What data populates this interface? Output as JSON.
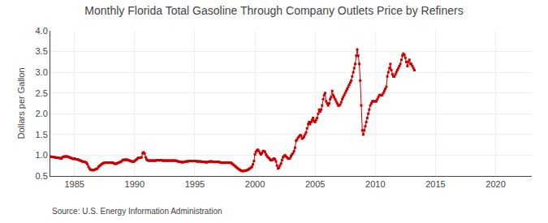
{
  "chart_data": {
    "type": "line",
    "title": "Monthly Florida Total Gasoline Through Company Outlets Price by Refiners",
    "y_label": "Dollars per Gallon",
    "annotations": [
      "Source: U.S. Energy Information Administration"
    ],
    "color": "#cc0000",
    "marker": "square",
    "line_style": "solid",
    "grid": true,
    "xlim": [
      1983,
      2023
    ],
    "ylim": [
      0.5,
      4.0
    ],
    "xticks": [
      1985,
      1990,
      1995,
      2000,
      2005,
      2010,
      2015,
      2020
    ],
    "yticks": [
      0.5,
      {
        "value": 1.0,
        "label": "1.0"
      },
      1.5,
      {
        "value": 2.0,
        "label": "2.0"
      },
      2.5,
      {
        "value": 3.0,
        "label": "3.0"
      },
      3.5,
      {
        "value": 4.0,
        "label": "4.0"
      }
    ],
    "x": [
      1983.0,
      1983.08,
      1983.17,
      1983.25,
      1983.33,
      1983.42,
      1983.5,
      1983.58,
      1983.67,
      1983.75,
      1983.83,
      1983.92,
      1984.0,
      1984.08,
      1984.17,
      1984.25,
      1984.33,
      1984.42,
      1984.5,
      1984.58,
      1984.67,
      1984.75,
      1984.83,
      1984.92,
      1985.0,
      1985.08,
      1985.17,
      1985.25,
      1985.33,
      1985.42,
      1985.5,
      1985.58,
      1985.67,
      1985.75,
      1985.83,
      1985.92,
      1986.0,
      1986.08,
      1986.17,
      1986.25,
      1986.33,
      1986.42,
      1986.5,
      1986.58,
      1986.67,
      1986.75,
      1986.83,
      1986.92,
      1987.0,
      1987.08,
      1987.17,
      1987.25,
      1987.33,
      1987.42,
      1987.5,
      1987.58,
      1987.67,
      1987.75,
      1987.83,
      1987.92,
      1988.0,
      1988.08,
      1988.17,
      1988.25,
      1988.33,
      1988.42,
      1988.5,
      1988.58,
      1988.67,
      1988.75,
      1988.83,
      1988.92,
      1989.0,
      1989.08,
      1989.17,
      1989.25,
      1989.33,
      1989.42,
      1989.5,
      1989.58,
      1989.67,
      1989.75,
      1989.83,
      1989.92,
      1990.0,
      1990.08,
      1990.17,
      1990.25,
      1990.33,
      1990.42,
      1990.5,
      1990.58,
      1990.67,
      1990.75,
      1990.83,
      1990.92,
      1991.0,
      1991.08,
      1991.17,
      1991.25,
      1991.33,
      1991.42,
      1991.5,
      1991.58,
      1991.67,
      1991.75,
      1991.83,
      1991.92,
      1992.0,
      1992.08,
      1992.17,
      1992.25,
      1992.33,
      1992.42,
      1992.5,
      1992.58,
      1992.67,
      1992.75,
      1992.83,
      1992.92,
      1993.0,
      1993.08,
      1993.17,
      1993.25,
      1993.33,
      1993.42,
      1993.5,
      1993.58,
      1993.67,
      1993.75,
      1993.83,
      1993.92,
      1994.0,
      1994.08,
      1994.17,
      1994.25,
      1994.33,
      1994.42,
      1994.5,
      1994.58,
      1994.67,
      1994.75,
      1994.83,
      1994.92,
      1995.0,
      1995.08,
      1995.17,
      1995.25,
      1995.33,
      1995.42,
      1995.5,
      1995.58,
      1995.67,
      1995.75,
      1995.83,
      1995.92,
      1996.0,
      1996.08,
      1996.17,
      1996.25,
      1996.33,
      1996.42,
      1996.5,
      1996.58,
      1996.67,
      1996.75,
      1996.83,
      1996.92,
      1997.0,
      1997.08,
      1997.17,
      1997.25,
      1997.33,
      1997.42,
      1997.5,
      1997.58,
      1997.67,
      1997.75,
      1997.83,
      1997.92,
      1998.0,
      1998.08,
      1998.17,
      1998.25,
      1998.33,
      1998.42,
      1998.5,
      1998.58,
      1998.67,
      1998.75,
      1998.83,
      1998.92,
      1999.0,
      1999.08,
      1999.17,
      1999.25,
      1999.33,
      1999.42,
      1999.5,
      1999.58,
      1999.67,
      1999.75,
      1999.83,
      1999.92,
      2000.0,
      2000.08,
      2000.17,
      2000.25,
      2000.33,
      2000.42,
      2000.5,
      2000.58,
      2000.67,
      2000.75,
      2000.83,
      2000.92,
      2001.0,
      2001.08,
      2001.17,
      2001.25,
      2001.33,
      2001.42,
      2001.5,
      2001.58,
      2001.67,
      2001.75,
      2001.83,
      2001.92,
      2002.0,
      2002.08,
      2002.17,
      2002.25,
      2002.33,
      2002.42,
      2002.5,
      2002.58,
      2002.67,
      2002.75,
      2002.83,
      2002.92,
      2003.0,
      2003.08,
      2003.17,
      2003.25,
      2003.33,
      2003.42,
      2003.5,
      2003.58,
      2003.67,
      2003.75,
      2003.83,
      2003.92,
      2004.0,
      2004.08,
      2004.17,
      2004.25,
      2004.33,
      2004.42,
      2004.5,
      2004.58,
      2004.67,
      2004.75,
      2004.83,
      2004.92,
      2005.0,
      2005.08,
      2005.17,
      2005.25,
      2005.33,
      2005.42,
      2005.5,
      2005.58,
      2005.67,
      2005.75,
      2005.83,
      2005.92,
      2006.0,
      2006.08,
      2006.17,
      2006.25,
      2006.33,
      2006.42,
      2006.5,
      2006.58,
      2006.67,
      2006.75,
      2006.83,
      2006.92,
      2007.0,
      2007.08,
      2007.17,
      2007.25,
      2007.33,
      2007.42,
      2007.5,
      2007.58,
      2007.67,
      2007.75,
      2007.83,
      2007.92,
      2008.0,
      2008.08,
      2008.17,
      2008.25,
      2008.33,
      2008.42,
      2008.5,
      2008.58,
      2008.67,
      2008.75,
      2008.83,
      2008.92,
      2009.0,
      2009.08,
      2009.17,
      2009.25,
      2009.33,
      2009.42,
      2009.5,
      2009.58,
      2009.67,
      2009.75,
      2009.83,
      2009.92,
      2010.0,
      2010.08,
      2010.17,
      2010.25,
      2010.33,
      2010.42,
      2010.5,
      2010.58,
      2010.67,
      2010.75,
      2010.83,
      2010.92,
      2011.0,
      2011.08,
      2011.17,
      2011.25,
      2011.33,
      2011.42,
      2011.5,
      2011.58,
      2011.67,
      2011.75,
      2011.83,
      2011.92,
      2012.0,
      2012.08,
      2012.17,
      2012.25,
      2012.33,
      2012.42,
      2012.5,
      2012.58,
      2012.67,
      2012.75,
      2012.83,
      2012.92,
      2013.0,
      2013.08,
      2013.17,
      2013.25
    ],
    "values": [
      0.97,
      0.96,
      0.96,
      0.96,
      0.95,
      0.95,
      0.94,
      0.94,
      0.94,
      0.93,
      0.93,
      0.92,
      0.95,
      0.96,
      0.97,
      0.97,
      0.97,
      0.97,
      0.96,
      0.95,
      0.94,
      0.93,
      0.92,
      0.91,
      0.92,
      0.91,
      0.9,
      0.9,
      0.89,
      0.88,
      0.87,
      0.86,
      0.85,
      0.84,
      0.84,
      0.83,
      0.82,
      0.78,
      0.72,
      0.68,
      0.65,
      0.65,
      0.64,
      0.64,
      0.65,
      0.66,
      0.67,
      0.68,
      0.72,
      0.74,
      0.76,
      0.78,
      0.8,
      0.81,
      0.82,
      0.82,
      0.82,
      0.82,
      0.82,
      0.82,
      0.82,
      0.82,
      0.82,
      0.81,
      0.8,
      0.79,
      0.8,
      0.81,
      0.82,
      0.83,
      0.84,
      0.85,
      0.88,
      0.89,
      0.89,
      0.89,
      0.89,
      0.89,
      0.88,
      0.87,
      0.86,
      0.85,
      0.85,
      0.84,
      0.86,
      0.88,
      0.9,
      0.92,
      0.94,
      0.94,
      0.94,
      0.95,
      1.05,
      1.07,
      1.04,
      0.95,
      0.9,
      0.88,
      0.87,
      0.87,
      0.87,
      0.87,
      0.87,
      0.87,
      0.87,
      0.87,
      0.88,
      0.88,
      0.88,
      0.88,
      0.88,
      0.88,
      0.87,
      0.87,
      0.87,
      0.87,
      0.87,
      0.87,
      0.87,
      0.87,
      0.87,
      0.87,
      0.87,
      0.87,
      0.87,
      0.87,
      0.86,
      0.85,
      0.85,
      0.84,
      0.84,
      0.83,
      0.83,
      0.84,
      0.84,
      0.85,
      0.85,
      0.85,
      0.86,
      0.86,
      0.86,
      0.86,
      0.86,
      0.86,
      0.86,
      0.86,
      0.85,
      0.85,
      0.85,
      0.85,
      0.85,
      0.84,
      0.84,
      0.84,
      0.84,
      0.83,
      0.83,
      0.84,
      0.84,
      0.85,
      0.85,
      0.85,
      0.84,
      0.84,
      0.84,
      0.84,
      0.84,
      0.84,
      0.84,
      0.83,
      0.82,
      0.82,
      0.82,
      0.82,
      0.82,
      0.82,
      0.82,
      0.82,
      0.82,
      0.82,
      0.82,
      0.8,
      0.78,
      0.76,
      0.74,
      0.72,
      0.7,
      0.68,
      0.66,
      0.65,
      0.63,
      0.62,
      0.62,
      0.62,
      0.63,
      0.63,
      0.64,
      0.65,
      0.67,
      0.68,
      0.7,
      0.72,
      0.78,
      0.86,
      1.02,
      1.08,
      1.12,
      1.13,
      1.1,
      1.05,
      1.02,
      1.05,
      1.1,
      1.1,
      1.08,
      1.02,
      0.98,
      0.95,
      0.93,
      0.9,
      0.88,
      0.88,
      0.9,
      0.92,
      0.9,
      0.85,
      0.75,
      0.68,
      0.7,
      0.75,
      0.8,
      0.88,
      0.95,
      0.98,
      1.0,
      0.97,
      0.95,
      0.92,
      0.92,
      0.93,
      0.98,
      1.02,
      1.05,
      1.1,
      1.18,
      1.35,
      1.38,
      1.42,
      1.45,
      1.48,
      1.48,
      1.4,
      1.42,
      1.45,
      1.5,
      1.55,
      1.65,
      1.75,
      1.8,
      1.75,
      1.8,
      1.85,
      1.9,
      1.82,
      1.8,
      1.85,
      1.9,
      2.0,
      2.1,
      2.05,
      2.1,
      2.2,
      2.35,
      2.45,
      2.5,
      2.3,
      2.25,
      2.2,
      2.25,
      2.35,
      2.4,
      2.55,
      2.45,
      2.4,
      2.35,
      2.3,
      2.25,
      2.2,
      2.2,
      2.22,
      2.28,
      2.35,
      2.4,
      2.45,
      2.5,
      2.55,
      2.6,
      2.65,
      2.7,
      2.75,
      2.8,
      2.9,
      3.0,
      3.1,
      3.2,
      3.4,
      3.55,
      3.4,
      3.2,
      2.8,
      2.2,
      1.6,
      1.5,
      1.6,
      1.7,
      1.8,
      1.9,
      2.0,
      2.1,
      2.2,
      2.25,
      2.3,
      2.3,
      2.3,
      2.3,
      2.3,
      2.35,
      2.4,
      2.45,
      2.45,
      2.45,
      2.45,
      2.5,
      2.55,
      2.6,
      2.65,
      2.9,
      3.0,
      3.1,
      3.2,
      3.05,
      2.95,
      2.9,
      2.9,
      2.95,
      3.0,
      3.05,
      3.1,
      3.15,
      3.2,
      3.3,
      3.4,
      3.45,
      3.42,
      3.35,
      3.25,
      3.15,
      3.25,
      3.3,
      3.2,
      3.2,
      3.15,
      3.1,
      3.05
    ]
  }
}
